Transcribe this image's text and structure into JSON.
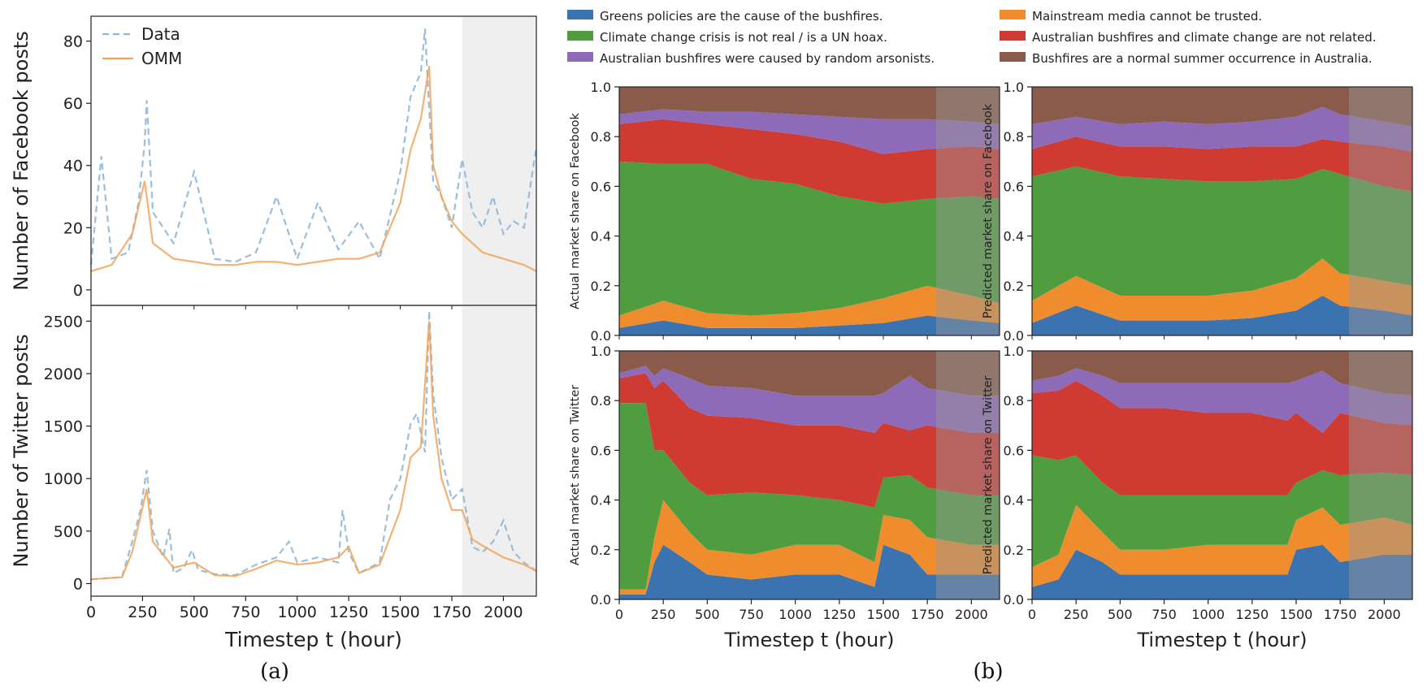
{
  "captions": {
    "a": "(a)",
    "b": "(b)"
  },
  "colors": {
    "data_line": "#8fb7d8",
    "omm_line": "#f2a35b",
    "shade": "#efefef",
    "greens": "#3b73b0",
    "mainstream": "#ef8c2e",
    "climate": "#4f9d3f",
    "unrelated": "#cf3a32",
    "arson": "#8e6bb8",
    "normal": "#8a5a4a"
  },
  "legend_b": [
    {
      "label": "Greens policies are the cause of the bushfires.",
      "color_key": "greens"
    },
    {
      "label": "Mainstream media cannot be trusted.",
      "color_key": "mainstream"
    },
    {
      "label": "Climate change crisis is not real / is a UN hoax.",
      "color_key": "climate"
    },
    {
      "label": "Australian bushfires and climate change are not related.",
      "color_key": "unrelated"
    },
    {
      "label": "Australian bushfires were caused by random arsonists.",
      "color_key": "arson"
    },
    {
      "label": "Bushfires are a normal summer occurrence in Australia.",
      "color_key": "normal"
    }
  ],
  "chart_data": [
    {
      "id": "facebook-posts",
      "type": "line",
      "ylabel": "Number of Facebook posts",
      "xlim": [
        0,
        2160
      ],
      "ylim": [
        -5,
        88
      ],
      "yticks": [
        0,
        20,
        40,
        60,
        80
      ],
      "shaded_from": 1800,
      "legend": [
        "Data",
        "OMM"
      ],
      "legend_position": "top-left",
      "series": [
        {
          "name": "Data",
          "style": "dashed",
          "x": [
            0,
            50,
            100,
            180,
            230,
            260,
            270,
            300,
            400,
            500,
            600,
            700,
            800,
            900,
            1000,
            1100,
            1200,
            1300,
            1400,
            1500,
            1550,
            1600,
            1620,
            1640,
            1660,
            1700,
            1750,
            1800,
            1850,
            1900,
            1950,
            2000,
            2050,
            2100,
            2160
          ],
          "y": [
            8,
            43,
            10,
            12,
            28,
            47,
            61,
            25,
            15,
            38,
            10,
            9,
            12,
            30,
            10,
            28,
            13,
            22,
            10,
            38,
            62,
            70,
            84,
            58,
            35,
            30,
            20,
            42,
            25,
            20,
            30,
            18,
            22,
            20,
            46
          ]
        },
        {
          "name": "OMM",
          "style": "solid",
          "x": [
            0,
            100,
            200,
            260,
            300,
            400,
            500,
            600,
            700,
            800,
            900,
            1000,
            1100,
            1200,
            1300,
            1400,
            1500,
            1550,
            1600,
            1640,
            1660,
            1700,
            1750,
            1800,
            1900,
            2000,
            2100,
            2160
          ],
          "y": [
            6,
            8,
            18,
            35,
            15,
            10,
            9,
            8,
            8,
            9,
            9,
            8,
            9,
            10,
            10,
            12,
            28,
            45,
            55,
            72,
            40,
            30,
            22,
            18,
            12,
            10,
            8,
            6
          ]
        }
      ]
    },
    {
      "id": "twitter-posts",
      "type": "line",
      "ylabel": "Number of Twitter posts",
      "xlabel": "Timestep t (hour)",
      "xlim": [
        0,
        2160
      ],
      "ylim": [
        -120,
        2650
      ],
      "xticks": [
        0,
        250,
        500,
        750,
        1000,
        1250,
        1500,
        1750,
        2000
      ],
      "yticks": [
        0,
        500,
        1000,
        1500,
        2000,
        2500
      ],
      "shaded_from": 1800,
      "series": [
        {
          "name": "Data",
          "style": "dashed",
          "x": [
            0,
            150,
            200,
            240,
            270,
            300,
            350,
            380,
            400,
            450,
            490,
            520,
            600,
            700,
            800,
            900,
            960,
            1000,
            1100,
            1200,
            1220,
            1250,
            1300,
            1400,
            1450,
            1500,
            1550,
            1580,
            1620,
            1640,
            1660,
            1700,
            1750,
            1800,
            1850,
            1900,
            1950,
            2000,
            2050,
            2100,
            2160
          ],
          "y": [
            40,
            60,
            400,
            700,
            1080,
            500,
            250,
            520,
            100,
            150,
            320,
            130,
            90,
            80,
            180,
            250,
            400,
            200,
            250,
            200,
            700,
            300,
            100,
            200,
            800,
            1000,
            1520,
            1620,
            1250,
            2600,
            1800,
            1200,
            800,
            900,
            350,
            300,
            400,
            600,
            300,
            200,
            120
          ]
        },
        {
          "name": "OMM",
          "style": "solid",
          "x": [
            0,
            150,
            200,
            270,
            300,
            400,
            500,
            600,
            700,
            800,
            900,
            1000,
            1100,
            1200,
            1250,
            1300,
            1400,
            1500,
            1550,
            1600,
            1640,
            1660,
            1700,
            1750,
            1800,
            1850,
            1900,
            2000,
            2100,
            2160
          ],
          "y": [
            40,
            60,
            300,
            900,
            400,
            150,
            200,
            80,
            70,
            140,
            220,
            180,
            200,
            250,
            350,
            100,
            180,
            700,
            1200,
            1300,
            2500,
            1600,
            1000,
            700,
            700,
            420,
            360,
            250,
            180,
            120
          ]
        }
      ]
    },
    {
      "id": "actual-facebook",
      "type": "area",
      "stacked": true,
      "ylabel": "Actual market share on Facebook",
      "xlim": [
        0,
        2160
      ],
      "ylim": [
        0,
        1
      ],
      "yticks": [
        0.0,
        0.2,
        0.4,
        0.6,
        0.8,
        1.0
      ],
      "shaded_from": 1800,
      "x": [
        0,
        250,
        500,
        750,
        1000,
        1250,
        1500,
        1750,
        2000,
        2160
      ],
      "series": [
        {
          "name": "Greens policies are the cause of the bushfires.",
          "color_key": "greens",
          "values": [
            0.03,
            0.06,
            0.03,
            0.03,
            0.03,
            0.04,
            0.05,
            0.08,
            0.06,
            0.05
          ]
        },
        {
          "name": "Mainstream media cannot be trusted.",
          "color_key": "mainstream",
          "values": [
            0.05,
            0.08,
            0.06,
            0.05,
            0.06,
            0.07,
            0.1,
            0.12,
            0.1,
            0.08
          ]
        },
        {
          "name": "Climate change crisis is not real / is a UN hoax.",
          "color_key": "climate",
          "values": [
            0.62,
            0.55,
            0.6,
            0.55,
            0.52,
            0.45,
            0.38,
            0.35,
            0.4,
            0.42
          ]
        },
        {
          "name": "Australian bushfires and climate change are not related.",
          "color_key": "unrelated",
          "values": [
            0.15,
            0.18,
            0.16,
            0.2,
            0.2,
            0.22,
            0.2,
            0.2,
            0.2,
            0.2
          ]
        },
        {
          "name": "Australian bushfires were caused by random arsonists.",
          "color_key": "arson",
          "values": [
            0.04,
            0.04,
            0.05,
            0.07,
            0.08,
            0.1,
            0.14,
            0.12,
            0.1,
            0.1
          ]
        },
        {
          "name": "Bushfires are a normal summer occurrence in Australia.",
          "color_key": "normal",
          "values": [
            0.11,
            0.09,
            0.1,
            0.1,
            0.11,
            0.12,
            0.13,
            0.13,
            0.14,
            0.15
          ]
        }
      ]
    },
    {
      "id": "predicted-facebook",
      "type": "area",
      "stacked": true,
      "ylabel": "Predicted market share on Facebook",
      "xlim": [
        0,
        2160
      ],
      "ylim": [
        0,
        1
      ],
      "yticks": [
        0.0,
        0.2,
        0.4,
        0.6,
        0.8,
        1.0
      ],
      "shaded_from": 1800,
      "x": [
        0,
        250,
        500,
        750,
        1000,
        1250,
        1500,
        1650,
        1750,
        2000,
        2160
      ],
      "series": [
        {
          "name": "Greens policies are the cause of the bushfires.",
          "color_key": "greens",
          "values": [
            0.05,
            0.12,
            0.06,
            0.06,
            0.06,
            0.07,
            0.1,
            0.16,
            0.12,
            0.1,
            0.08
          ]
        },
        {
          "name": "Mainstream media cannot be trusted.",
          "color_key": "mainstream",
          "values": [
            0.09,
            0.12,
            0.1,
            0.1,
            0.1,
            0.11,
            0.13,
            0.15,
            0.13,
            0.12,
            0.12
          ]
        },
        {
          "name": "Climate change crisis is not real / is a UN hoax.",
          "color_key": "climate",
          "values": [
            0.5,
            0.44,
            0.48,
            0.47,
            0.46,
            0.44,
            0.4,
            0.36,
            0.4,
            0.38,
            0.38
          ]
        },
        {
          "name": "Australian bushfires and climate change are not related.",
          "color_key": "unrelated",
          "values": [
            0.11,
            0.12,
            0.12,
            0.13,
            0.13,
            0.14,
            0.13,
            0.12,
            0.13,
            0.16,
            0.16
          ]
        },
        {
          "name": "Australian bushfires were caused by random arsonists.",
          "color_key": "arson",
          "values": [
            0.1,
            0.08,
            0.09,
            0.1,
            0.1,
            0.1,
            0.12,
            0.13,
            0.11,
            0.1,
            0.1
          ]
        },
        {
          "name": "Bushfires are a normal summer occurrence in Australia.",
          "color_key": "normal",
          "values": [
            0.15,
            0.12,
            0.15,
            0.14,
            0.15,
            0.14,
            0.12,
            0.08,
            0.11,
            0.14,
            0.16
          ]
        }
      ]
    },
    {
      "id": "actual-twitter",
      "type": "area",
      "stacked": true,
      "ylabel": "Actual market share on Twitter",
      "xlabel": "Timestep t (hour)",
      "xlim": [
        0,
        2160
      ],
      "ylim": [
        0,
        1
      ],
      "xticks": [
        0,
        250,
        500,
        750,
        1000,
        1250,
        1500,
        1750,
        2000
      ],
      "yticks": [
        0.0,
        0.2,
        0.4,
        0.6,
        0.8,
        1.0
      ],
      "shaded_from": 1800,
      "x": [
        0,
        150,
        200,
        250,
        400,
        500,
        750,
        1000,
        1250,
        1450,
        1500,
        1650,
        1750,
        2000,
        2160
      ],
      "series": [
        {
          "name": "Greens policies are the cause of the bushfires.",
          "color_key": "greens",
          "values": [
            0.02,
            0.02,
            0.15,
            0.22,
            0.15,
            0.1,
            0.08,
            0.1,
            0.1,
            0.05,
            0.22,
            0.18,
            0.1,
            0.1,
            0.1
          ]
        },
        {
          "name": "Mainstream media cannot be trusted.",
          "color_key": "mainstream",
          "values": [
            0.02,
            0.02,
            0.1,
            0.18,
            0.12,
            0.1,
            0.1,
            0.12,
            0.12,
            0.1,
            0.12,
            0.14,
            0.15,
            0.12,
            0.12
          ]
        },
        {
          "name": "Climate change crisis is not real / is a UN hoax.",
          "color_key": "climate",
          "values": [
            0.75,
            0.75,
            0.35,
            0.2,
            0.2,
            0.22,
            0.25,
            0.2,
            0.18,
            0.22,
            0.15,
            0.18,
            0.2,
            0.2,
            0.2
          ]
        },
        {
          "name": "Australian bushfires and climate change are not related.",
          "color_key": "unrelated",
          "values": [
            0.1,
            0.12,
            0.25,
            0.28,
            0.3,
            0.32,
            0.3,
            0.28,
            0.3,
            0.3,
            0.22,
            0.18,
            0.25,
            0.25,
            0.25
          ]
        },
        {
          "name": "Australian bushfires were caused by random arsonists.",
          "color_key": "arson",
          "values": [
            0.02,
            0.03,
            0.05,
            0.05,
            0.12,
            0.12,
            0.12,
            0.12,
            0.12,
            0.15,
            0.12,
            0.22,
            0.15,
            0.15,
            0.15
          ]
        },
        {
          "name": "Bushfires are a normal summer occurrence in Australia.",
          "color_key": "normal",
          "values": [
            0.09,
            0.06,
            0.1,
            0.07,
            0.11,
            0.14,
            0.15,
            0.18,
            0.18,
            0.18,
            0.17,
            0.1,
            0.15,
            0.18,
            0.18
          ]
        }
      ]
    },
    {
      "id": "predicted-twitter",
      "type": "area",
      "stacked": true,
      "ylabel": "Predicted market share on Twitter",
      "xlabel": "Timestep t (hour)",
      "xlim": [
        0,
        2160
      ],
      "ylim": [
        0,
        1
      ],
      "xticks": [
        0,
        250,
        500,
        750,
        1000,
        1250,
        1500,
        1750,
        2000
      ],
      "yticks": [
        0.0,
        0.2,
        0.4,
        0.6,
        0.8,
        1.0
      ],
      "shaded_from": 1800,
      "x": [
        0,
        150,
        250,
        400,
        500,
        750,
        1000,
        1250,
        1450,
        1500,
        1650,
        1750,
        2000,
        2160
      ],
      "series": [
        {
          "name": "Greens policies are the cause of the bushfires.",
          "color_key": "greens",
          "values": [
            0.05,
            0.08,
            0.2,
            0.15,
            0.1,
            0.1,
            0.1,
            0.1,
            0.1,
            0.2,
            0.22,
            0.15,
            0.18,
            0.18
          ]
        },
        {
          "name": "Mainstream media cannot be trusted.",
          "color_key": "mainstream",
          "values": [
            0.08,
            0.1,
            0.18,
            0.12,
            0.1,
            0.1,
            0.12,
            0.12,
            0.12,
            0.12,
            0.15,
            0.15,
            0.15,
            0.12
          ]
        },
        {
          "name": "Climate change crisis is not real / is a UN hoax.",
          "color_key": "climate",
          "values": [
            0.45,
            0.38,
            0.2,
            0.2,
            0.22,
            0.22,
            0.2,
            0.2,
            0.2,
            0.15,
            0.15,
            0.2,
            0.18,
            0.2
          ]
        },
        {
          "name": "Australian bushfires and climate change are not related.",
          "color_key": "unrelated",
          "values": [
            0.25,
            0.28,
            0.3,
            0.35,
            0.35,
            0.35,
            0.33,
            0.33,
            0.3,
            0.28,
            0.15,
            0.25,
            0.2,
            0.2
          ]
        },
        {
          "name": "Australian bushfires were caused by random arsonists.",
          "color_key": "arson",
          "values": [
            0.05,
            0.06,
            0.05,
            0.08,
            0.1,
            0.1,
            0.12,
            0.12,
            0.15,
            0.13,
            0.25,
            0.12,
            0.12,
            0.12
          ]
        },
        {
          "name": "Bushfires are a normal summer occurrence in Australia.",
          "color_key": "normal",
          "values": [
            0.12,
            0.1,
            0.07,
            0.1,
            0.13,
            0.13,
            0.13,
            0.13,
            0.13,
            0.12,
            0.08,
            0.13,
            0.17,
            0.18
          ]
        }
      ]
    }
  ]
}
